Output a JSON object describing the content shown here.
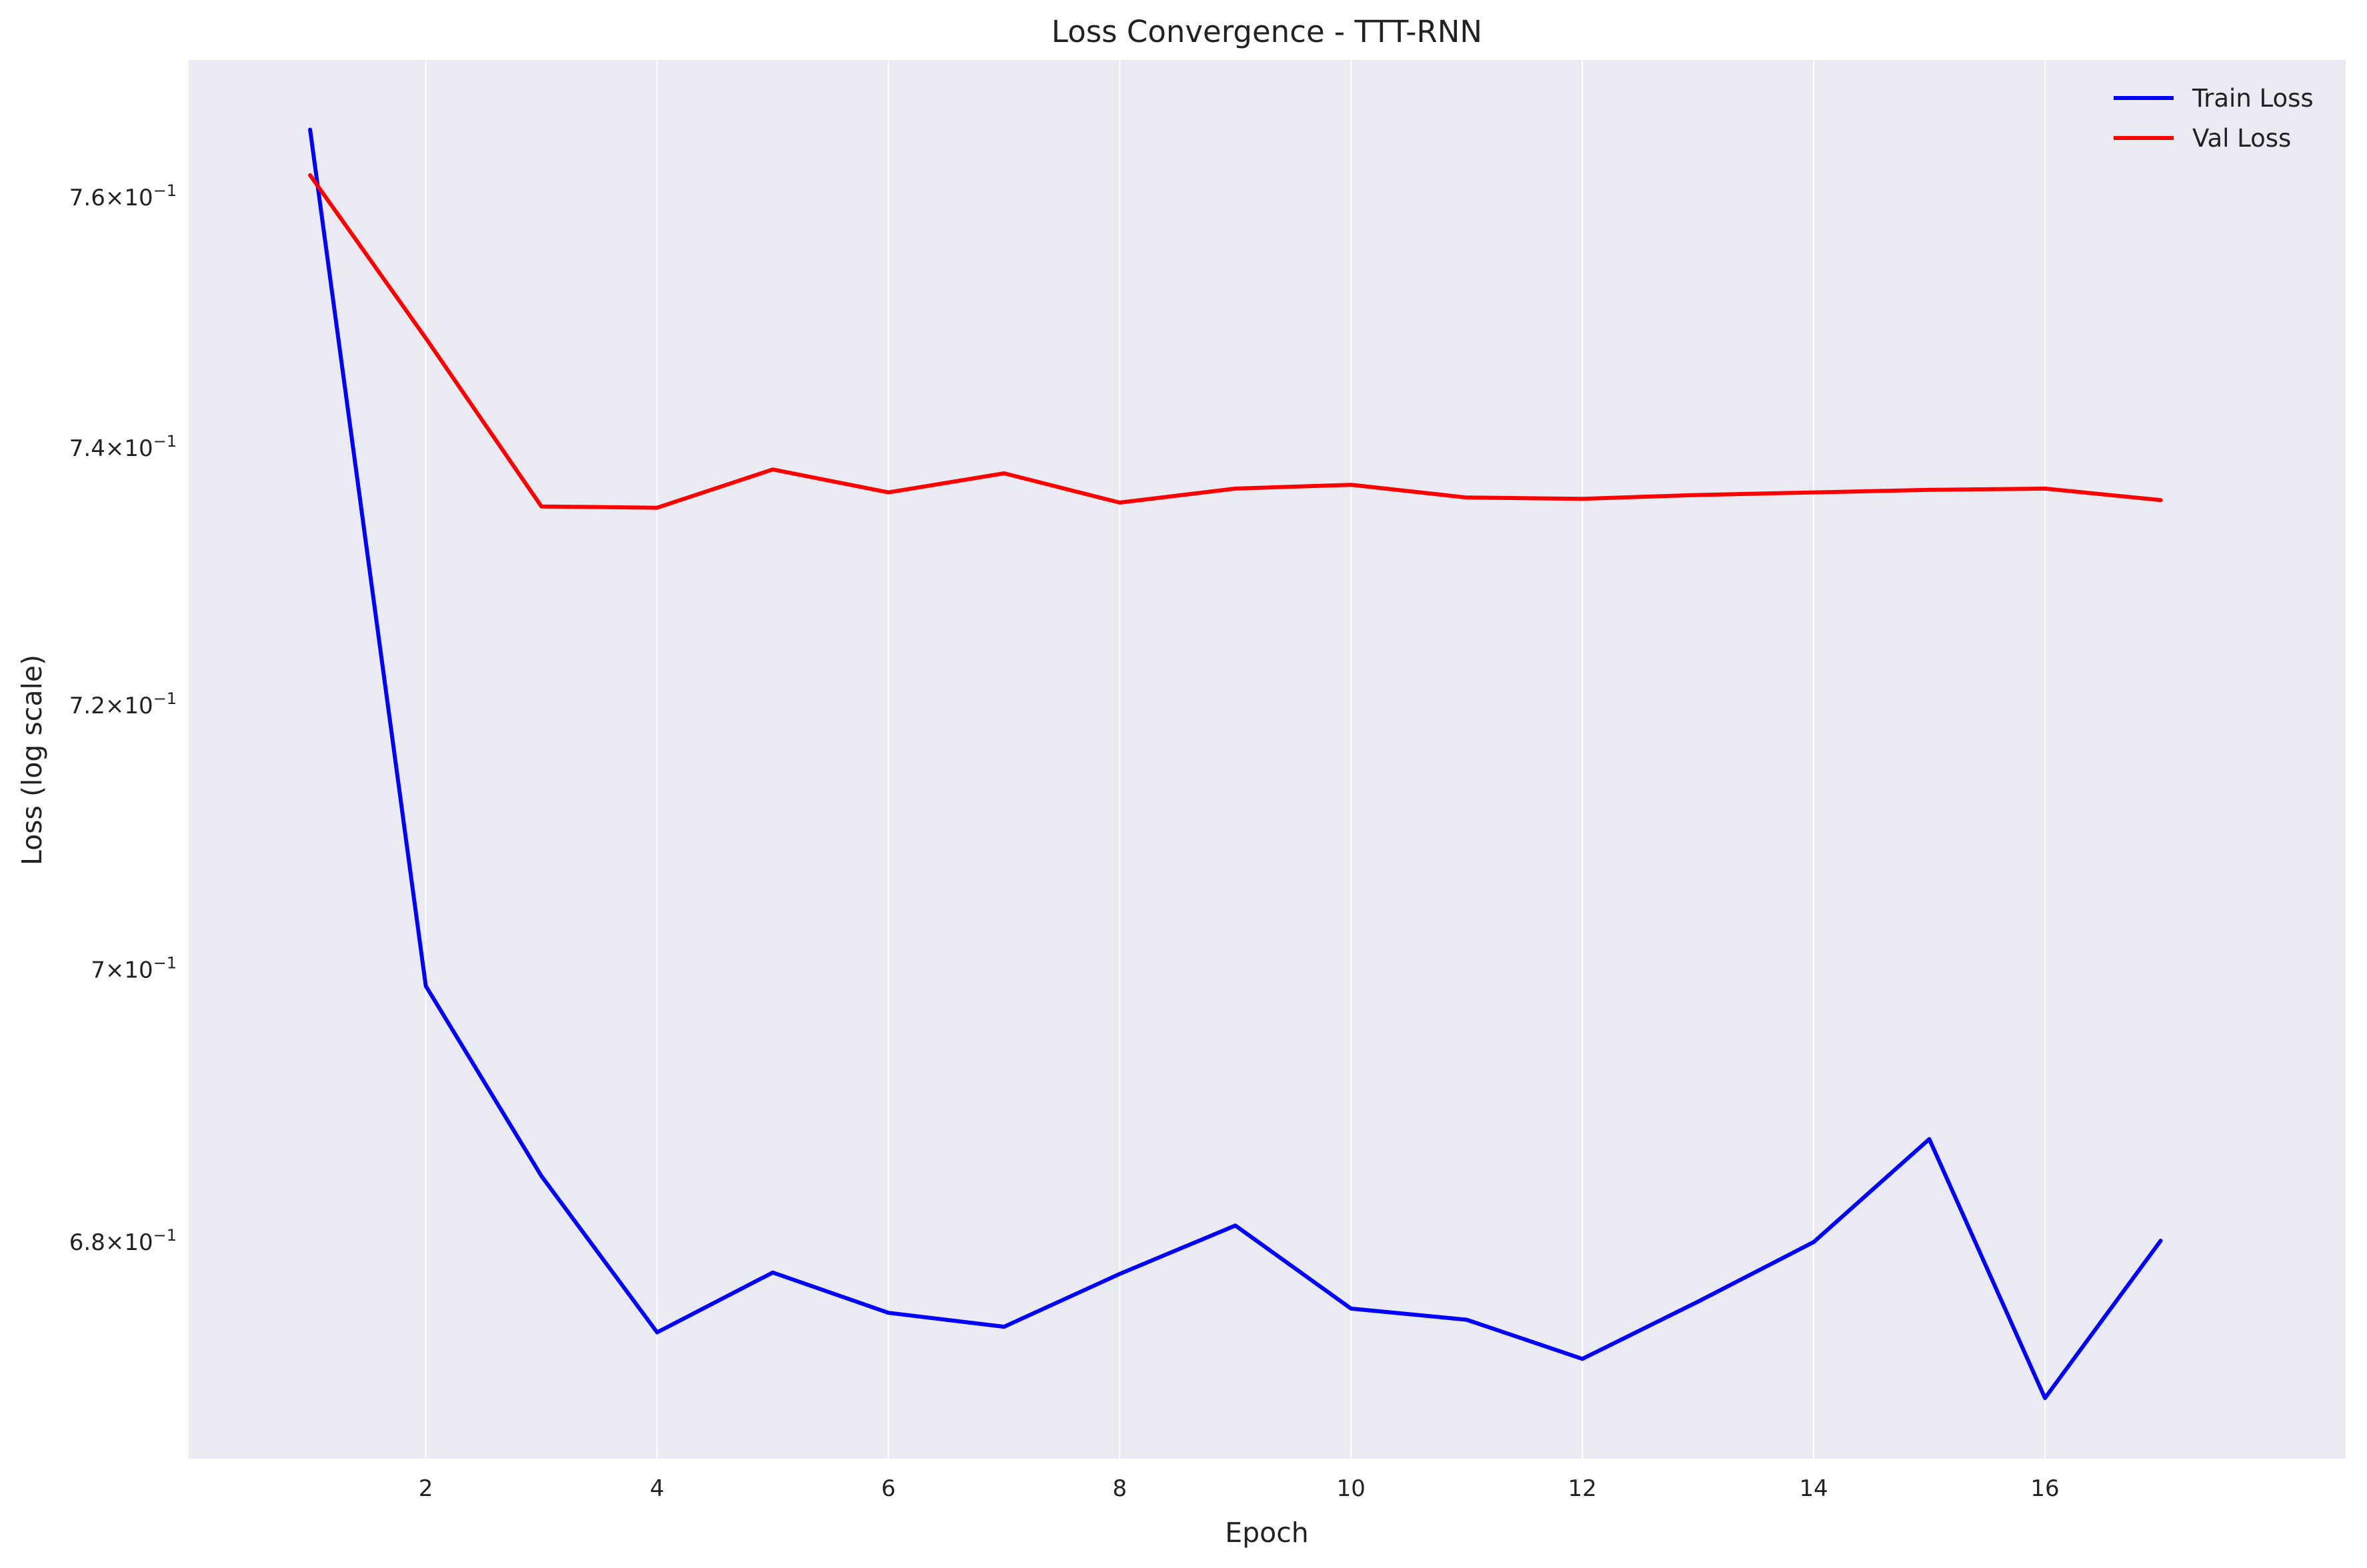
{
  "chart_data": {
    "type": "line",
    "title": "Loss Convergence - TTT-RNN",
    "xlabel": "Epoch",
    "ylabel": "Loss (log scale)",
    "y_scale": "log",
    "grid": true,
    "legend_position": "top-right",
    "background_color": "#eaeaf2",
    "x": [
      1,
      2,
      3,
      4,
      5,
      6,
      7,
      8,
      9,
      10,
      11,
      12,
      13,
      14,
      15,
      16,
      17
    ],
    "xlim": [
      -0.05,
      18.6
    ],
    "ylim": [
      0.6645,
      0.7712
    ],
    "x_ticks": [
      {
        "value": 2,
        "label": "2"
      },
      {
        "value": 4,
        "label": "4"
      },
      {
        "value": 6,
        "label": "6"
      },
      {
        "value": 8,
        "label": "8"
      },
      {
        "value": 10,
        "label": "10"
      },
      {
        "value": 12,
        "label": "12"
      },
      {
        "value": 14,
        "label": "14"
      },
      {
        "value": 16,
        "label": "16"
      }
    ],
    "y_ticks": [
      {
        "value": 0.76,
        "mantissa": "7.6",
        "exp": "−1"
      },
      {
        "value": 0.74,
        "mantissa": "7.4",
        "exp": "−1"
      },
      {
        "value": 0.72,
        "mantissa": "7.2",
        "exp": "−1"
      },
      {
        "value": 0.7,
        "mantissa": "7",
        "exp": "−1"
      },
      {
        "value": 0.68,
        "mantissa": "6.8",
        "exp": "−1"
      }
    ],
    "series": [
      {
        "name": "Train Loss",
        "color": "#0000ff",
        "values": [
          0.7655,
          0.6988,
          0.6848,
          0.6735,
          0.6778,
          0.6749,
          0.6739,
          0.6777,
          0.6812,
          0.6752,
          0.6744,
          0.6716,
          0.6757,
          0.68,
          0.6875,
          0.6688,
          0.6801
        ]
      },
      {
        "name": "Val Loss",
        "color": "#ff0000",
        "values": [
          0.7618,
          0.7487,
          0.7354,
          0.7353,
          0.7383,
          0.7365,
          0.738,
          0.7357,
          0.7368,
          0.7371,
          0.7361,
          0.736,
          0.7363,
          0.7365,
          0.7367,
          0.7368,
          0.7359
        ]
      }
    ]
  }
}
